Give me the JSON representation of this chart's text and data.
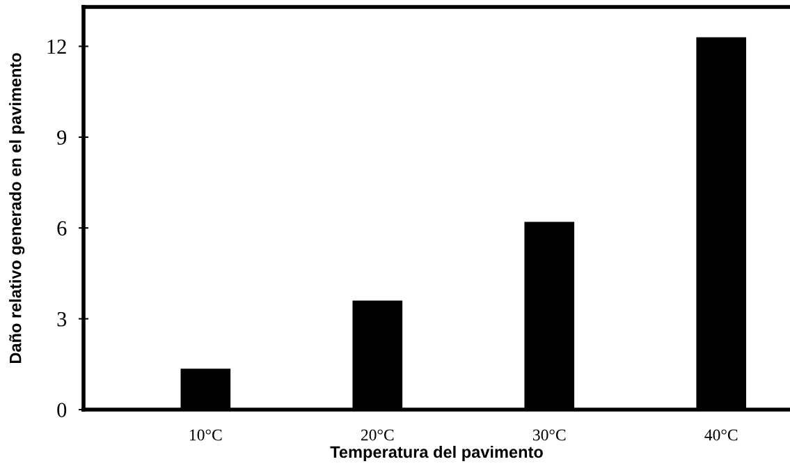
{
  "chart_data": {
    "type": "bar",
    "xlabel": "Temperatura del pavimento",
    "ylabel": "Daño relativo generado en el pavimento",
    "categories": [
      "10°C",
      "20°C",
      "30°C",
      "40°C"
    ],
    "values": [
      1.35,
      3.6,
      6.2,
      12.3
    ],
    "color": "#000000",
    "ylim": [
      0,
      13.3
    ],
    "yticks": [
      0,
      3,
      6,
      9,
      12
    ],
    "grid": false,
    "legend": false
  }
}
